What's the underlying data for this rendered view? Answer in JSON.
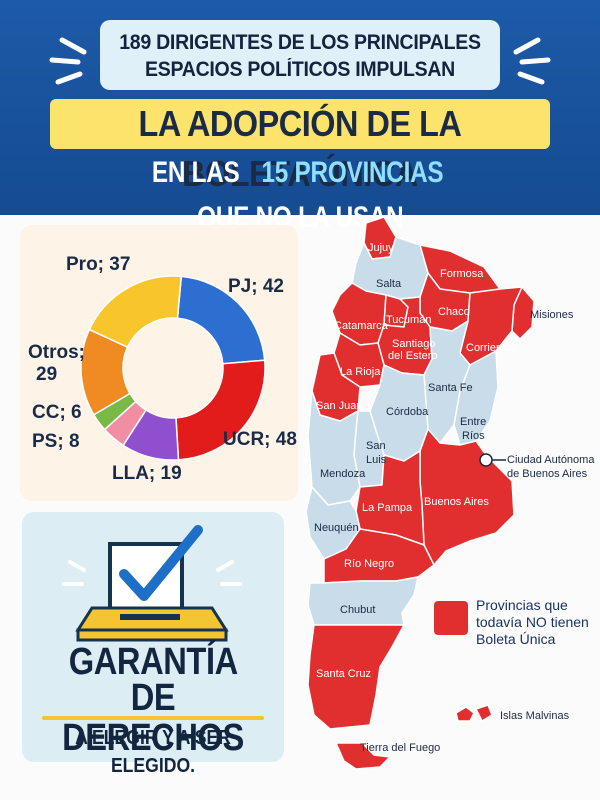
{
  "header": {
    "line1": "189 DIRIGENTES DE LOS PRINCIPALES",
    "line2": "ESPACIOS POLÍTICOS IMPULSAN",
    "headline": "LA ADOPCIÓN DE LA BOLETA ÚNICA",
    "sub_pre": "EN LAS",
    "sub_highlight": "15 PROVINCIAS",
    "sub_post": "QUE NO LA USAN"
  },
  "chart_data": {
    "type": "pie",
    "categories": [
      "PJ",
      "UCR",
      "LLA",
      "PS",
      "CC",
      "Otros",
      "Pro"
    ],
    "values": [
      42,
      48,
      19,
      8,
      6,
      29,
      37
    ],
    "labels": [
      "PJ; 42",
      "UCR; 48",
      "LLA; 19",
      "PS; 8",
      "CC; 6",
      "Otros;",
      "Pro; 37"
    ],
    "label_extra": "29",
    "colors": [
      "#2c6fd1",
      "#e21b1b",
      "#8f4fcf",
      "#f28ea3",
      "#79b946",
      "#f08a23",
      "#f8c62b"
    ]
  },
  "guarantee": {
    "title_1": "GARANTÍA",
    "title_2": "DE DERECHOS",
    "subtitle": "A ELEGIR Y A SER ELEGIDO."
  },
  "map": {
    "colors": {
      "red": "#e12f2f",
      "blue": "#c9dcea"
    },
    "labels": {
      "jujuy": "Jujuy",
      "salta": "Salta",
      "formosa": "Formosa",
      "misiones": "Misiones",
      "catamarca": "Catamarca",
      "tucuman": "Tucumán",
      "chaco": "Chaco",
      "santiago_1": "Santiago",
      "santiago_2": "del Estero",
      "corrientes": "Corrientes",
      "la_rioja": "La Rioja",
      "santa_fe": "Santa Fe",
      "san_juan": "San Juan",
      "cordoba": "Córdoba",
      "entre_rios_1": "Entre",
      "entre_rios_2": "Ríos",
      "san_luis_1": "San",
      "san_luis_2": "Luis",
      "mendoza": "Mendoza",
      "caba_1": "Ciudad Autónoma",
      "caba_2": "de Buenos Aires",
      "buenos_aires": "Buenos Aires",
      "la_pampa": "La Pampa",
      "neuquen": "Neuquén",
      "rio_negro": "Río Negro",
      "chubut": "Chubut",
      "santa_cruz": "Santa Cruz",
      "tierra_del_fuego": "Tierra del Fuego",
      "malvinas": "Islas Malvinas"
    },
    "legend": "Provincias que todavía NO tienen Boleta Única"
  }
}
